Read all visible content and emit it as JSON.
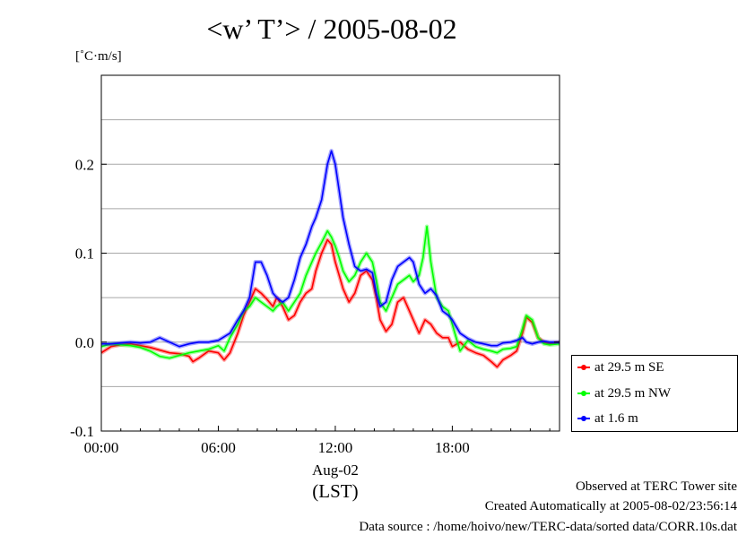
{
  "chart_data": {
    "type": "line",
    "title": "<w’ T’> / 2005-08-02",
    "ylabel": "[˚C·m/s]",
    "xlabel": "(LST)",
    "xlim": [
      0,
      23.5
    ],
    "ylim": [
      -0.1,
      0.3
    ],
    "x_ticks": [
      {
        "value": 0,
        "label": "00:00"
      },
      {
        "value": 6,
        "label": "06:00"
      },
      {
        "value": 12,
        "label": "12:00"
      },
      {
        "value": 18,
        "label": "18:00"
      }
    ],
    "x_sublabel": "Aug-02",
    "y_ticks": [
      {
        "value": -0.1,
        "label": "-0.1"
      },
      {
        "value": 0.0,
        "label": "0.0"
      },
      {
        "value": 0.1,
        "label": "0.1"
      },
      {
        "value": 0.2,
        "label": "0.2"
      }
    ],
    "grid": "horizontal",
    "legend_position": "bottom-right-outside",
    "series": [
      {
        "name": "at 29.5 m SE",
        "color": "#ff0000",
        "points": [
          [
            0,
            -0.012
          ],
          [
            0.5,
            -0.005
          ],
          [
            1,
            -0.003
          ],
          [
            1.5,
            -0.002
          ],
          [
            2,
            -0.004
          ],
          [
            2.5,
            -0.006
          ],
          [
            3,
            -0.009
          ],
          [
            3.5,
            -0.012
          ],
          [
            4,
            -0.013
          ],
          [
            4.5,
            -0.016
          ],
          [
            4.7,
            -0.022
          ],
          [
            5,
            -0.018
          ],
          [
            5.5,
            -0.01
          ],
          [
            6,
            -0.012
          ],
          [
            6.3,
            -0.02
          ],
          [
            6.6,
            -0.012
          ],
          [
            7,
            0.01
          ],
          [
            7.3,
            0.03
          ],
          [
            7.6,
            0.045
          ],
          [
            7.9,
            0.06
          ],
          [
            8.2,
            0.055
          ],
          [
            8.5,
            0.048
          ],
          [
            8.8,
            0.04
          ],
          [
            9,
            0.05
          ],
          [
            9.3,
            0.04
          ],
          [
            9.6,
            0.025
          ],
          [
            9.9,
            0.03
          ],
          [
            10.2,
            0.045
          ],
          [
            10.5,
            0.055
          ],
          [
            10.8,
            0.06
          ],
          [
            11,
            0.08
          ],
          [
            11.3,
            0.1
          ],
          [
            11.6,
            0.115
          ],
          [
            11.8,
            0.11
          ],
          [
            12,
            0.09
          ],
          [
            12.2,
            0.075
          ],
          [
            12.4,
            0.06
          ],
          [
            12.7,
            0.045
          ],
          [
            13,
            0.055
          ],
          [
            13.3,
            0.075
          ],
          [
            13.6,
            0.08
          ],
          [
            13.9,
            0.07
          ],
          [
            14.1,
            0.05
          ],
          [
            14.3,
            0.025
          ],
          [
            14.6,
            0.012
          ],
          [
            14.9,
            0.02
          ],
          [
            15.2,
            0.045
          ],
          [
            15.5,
            0.05
          ],
          [
            15.8,
            0.035
          ],
          [
            16,
            0.025
          ],
          [
            16.3,
            0.01
          ],
          [
            16.6,
            0.025
          ],
          [
            16.9,
            0.02
          ],
          [
            17.2,
            0.01
          ],
          [
            17.5,
            0.005
          ],
          [
            17.8,
            0.005
          ],
          [
            18,
            -0.005
          ],
          [
            18.4,
            0.0
          ],
          [
            18.8,
            -0.008
          ],
          [
            19.2,
            -0.012
          ],
          [
            19.6,
            -0.015
          ],
          [
            20,
            -0.022
          ],
          [
            20.3,
            -0.028
          ],
          [
            20.6,
            -0.02
          ],
          [
            21,
            -0.015
          ],
          [
            21.3,
            -0.01
          ],
          [
            21.6,
            0.01
          ],
          [
            21.8,
            0.028
          ],
          [
            22.1,
            0.022
          ],
          [
            22.4,
            0.005
          ],
          [
            22.7,
            0.0
          ],
          [
            23,
            -0.002
          ],
          [
            23.5,
            0.0
          ]
        ]
      },
      {
        "name": "at 29.5 m NW",
        "color": "#00ff00",
        "points": [
          [
            0,
            -0.005
          ],
          [
            0.5,
            -0.002
          ],
          [
            1,
            -0.003
          ],
          [
            1.5,
            -0.004
          ],
          [
            2,
            -0.006
          ],
          [
            2.5,
            -0.01
          ],
          [
            3,
            -0.016
          ],
          [
            3.5,
            -0.018
          ],
          [
            4,
            -0.015
          ],
          [
            4.5,
            -0.012
          ],
          [
            5,
            -0.01
          ],
          [
            5.5,
            -0.008
          ],
          [
            6,
            -0.004
          ],
          [
            6.3,
            -0.01
          ],
          [
            6.6,
            0.005
          ],
          [
            7,
            0.02
          ],
          [
            7.3,
            0.035
          ],
          [
            7.6,
            0.04
          ],
          [
            7.9,
            0.05
          ],
          [
            8.2,
            0.045
          ],
          [
            8.5,
            0.04
          ],
          [
            8.8,
            0.035
          ],
          [
            9,
            0.04
          ],
          [
            9.3,
            0.045
          ],
          [
            9.6,
            0.035
          ],
          [
            9.9,
            0.045
          ],
          [
            10.2,
            0.055
          ],
          [
            10.5,
            0.075
          ],
          [
            10.8,
            0.09
          ],
          [
            11,
            0.1
          ],
          [
            11.3,
            0.112
          ],
          [
            11.6,
            0.125
          ],
          [
            11.8,
            0.118
          ],
          [
            12,
            0.108
          ],
          [
            12.2,
            0.095
          ],
          [
            12.4,
            0.08
          ],
          [
            12.7,
            0.068
          ],
          [
            13,
            0.075
          ],
          [
            13.3,
            0.09
          ],
          [
            13.6,
            0.1
          ],
          [
            13.9,
            0.09
          ],
          [
            14.1,
            0.07
          ],
          [
            14.3,
            0.045
          ],
          [
            14.6,
            0.035
          ],
          [
            14.9,
            0.05
          ],
          [
            15.2,
            0.065
          ],
          [
            15.5,
            0.07
          ],
          [
            15.8,
            0.075
          ],
          [
            16,
            0.068
          ],
          [
            16.3,
            0.075
          ],
          [
            16.5,
            0.095
          ],
          [
            16.7,
            0.13
          ],
          [
            16.9,
            0.09
          ],
          [
            17.2,
            0.05
          ],
          [
            17.5,
            0.04
          ],
          [
            17.8,
            0.035
          ],
          [
            18,
            0.02
          ],
          [
            18.4,
            -0.01
          ],
          [
            18.8,
            0.002
          ],
          [
            19.2,
            -0.005
          ],
          [
            19.6,
            -0.008
          ],
          [
            20,
            -0.01
          ],
          [
            20.3,
            -0.012
          ],
          [
            20.6,
            -0.008
          ],
          [
            21,
            -0.007
          ],
          [
            21.3,
            -0.005
          ],
          [
            21.6,
            0.015
          ],
          [
            21.8,
            0.03
          ],
          [
            22.1,
            0.025
          ],
          [
            22.4,
            0.005
          ],
          [
            22.7,
            -0.002
          ],
          [
            23,
            -0.003
          ],
          [
            23.5,
            -0.002
          ]
        ]
      },
      {
        "name": "at 1.6 m",
        "color": "#0000ff",
        "points": [
          [
            0,
            -0.002
          ],
          [
            0.5,
            -0.002
          ],
          [
            1,
            -0.001
          ],
          [
            1.5,
            0.0
          ],
          [
            2,
            -0.001
          ],
          [
            2.5,
            0.0
          ],
          [
            3,
            0.005
          ],
          [
            3.5,
            0.0
          ],
          [
            4,
            -0.005
          ],
          [
            4.5,
            -0.002
          ],
          [
            5,
            0.0
          ],
          [
            5.5,
            0.0
          ],
          [
            6,
            0.002
          ],
          [
            6.3,
            0.006
          ],
          [
            6.6,
            0.01
          ],
          [
            7,
            0.025
          ],
          [
            7.3,
            0.035
          ],
          [
            7.6,
            0.05
          ],
          [
            7.9,
            0.09
          ],
          [
            8.2,
            0.09
          ],
          [
            8.5,
            0.075
          ],
          [
            8.8,
            0.055
          ],
          [
            9,
            0.05
          ],
          [
            9.3,
            0.045
          ],
          [
            9.6,
            0.05
          ],
          [
            9.9,
            0.07
          ],
          [
            10.2,
            0.095
          ],
          [
            10.5,
            0.11
          ],
          [
            10.8,
            0.13
          ],
          [
            11,
            0.14
          ],
          [
            11.3,
            0.16
          ],
          [
            11.6,
            0.2
          ],
          [
            11.8,
            0.215
          ],
          [
            12,
            0.2
          ],
          [
            12.2,
            0.17
          ],
          [
            12.4,
            0.14
          ],
          [
            12.7,
            0.11
          ],
          [
            13,
            0.085
          ],
          [
            13.3,
            0.08
          ],
          [
            13.6,
            0.082
          ],
          [
            13.9,
            0.078
          ],
          [
            14.1,
            0.055
          ],
          [
            14.3,
            0.04
          ],
          [
            14.6,
            0.045
          ],
          [
            14.9,
            0.07
          ],
          [
            15.2,
            0.085
          ],
          [
            15.5,
            0.09
          ],
          [
            15.8,
            0.095
          ],
          [
            16,
            0.09
          ],
          [
            16.3,
            0.065
          ],
          [
            16.6,
            0.055
          ],
          [
            16.9,
            0.06
          ],
          [
            17.2,
            0.052
          ],
          [
            17.5,
            0.035
          ],
          [
            17.8,
            0.03
          ],
          [
            18,
            0.025
          ],
          [
            18.4,
            0.01
          ],
          [
            18.8,
            0.004
          ],
          [
            19.2,
            0.0
          ],
          [
            19.6,
            -0.002
          ],
          [
            20,
            -0.004
          ],
          [
            20.3,
            -0.004
          ],
          [
            20.6,
            -0.001
          ],
          [
            21,
            0.0
          ],
          [
            21.3,
            0.002
          ],
          [
            21.6,
            0.005
          ],
          [
            21.8,
            0.0
          ],
          [
            22.1,
            -0.002
          ],
          [
            22.4,
            0.0
          ],
          [
            22.7,
            0.001
          ],
          [
            23,
            0.0
          ],
          [
            23.5,
            0.0
          ]
        ]
      }
    ]
  },
  "footer": {
    "line1": "Observed at TERC Tower site",
    "line2": "Created Automatically at 2005-08-02/23:56:14",
    "line3": "Data source : /home/hoivo/new/TERC-data/sorted  data/CORR.10s.dat"
  }
}
